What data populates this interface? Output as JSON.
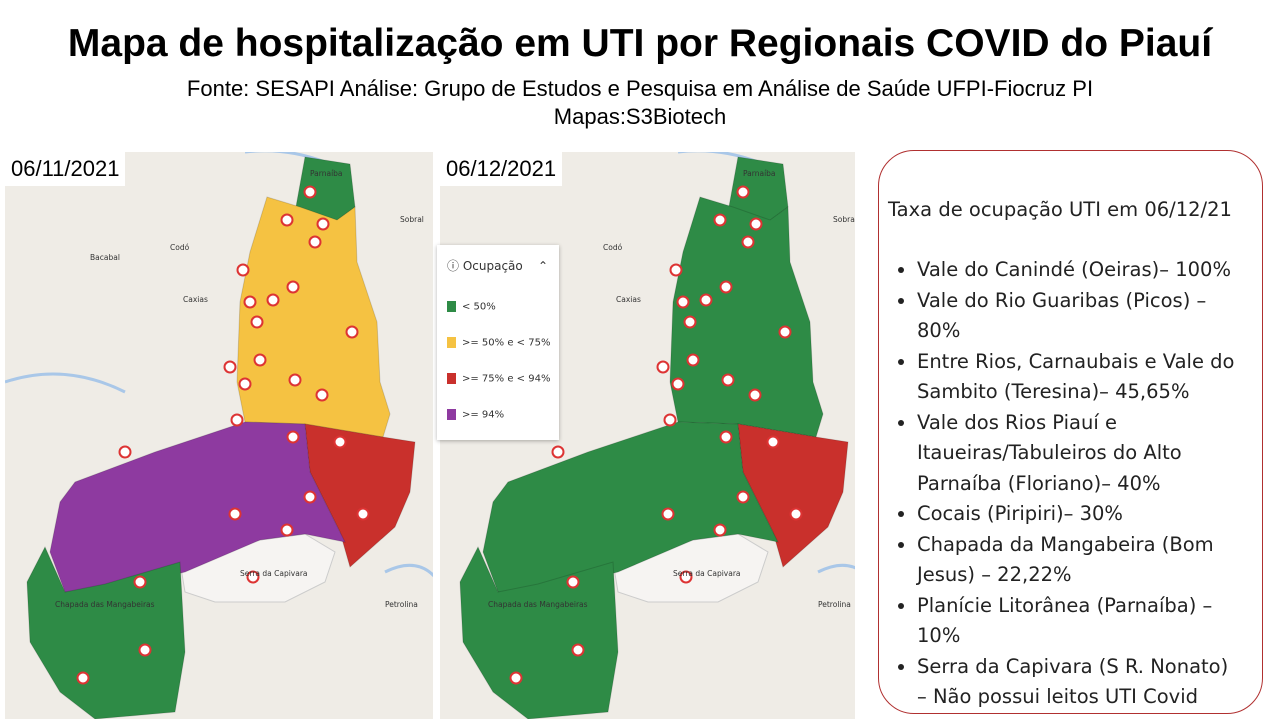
{
  "header": {
    "title": "Mapa de hospitalização em UTI por Regionais COVID do Piauí",
    "subtitle_lines": [
      "Fonte: SESAPI Análise: Grupo de Estudos e Pesquisa em Análise de Saúde UFPI-Fiocruz PI",
      "Mapas:S3Biotech"
    ]
  },
  "maps": [
    {
      "date": "06/11/2021"
    },
    {
      "date": "06/12/2021"
    }
  ],
  "map_labels": [
    "Parnaíba",
    "Sobral",
    "Bacabal",
    "Codó",
    "Caxias",
    "Serra da Capivara",
    "Chapada das Mangabeiras",
    "Petrolina"
  ],
  "legend": {
    "title": "Ocupação",
    "items": [
      "< 50%",
      ">= 50% e < 75%",
      ">= 75% e < 94%",
      ">= 94%"
    ]
  },
  "panel": {
    "title": "Taxa de ocupação UTI em 06/12/21",
    "items": [
      "Vale do Canindé (Oeiras)– 100%",
      "Vale do Rio Guaribas (Picos) – 80%",
      "Entre Rios, Carnaubais e Vale do Sambito (Teresina)– 45,65%",
      "Vale dos Rios Piauí e Itaueiras/Tabuleiros do Alto Parnaíba (Floriano)– 40%",
      "Cocais (Piripiri)– 30%",
      "Chapada da Mangabeira (Bom Jesus) – 22,22%",
      "Planície Litorânea (Parnaíba) – 10%",
      "Serra da Capivara (S R. Nonato) – Não possui leitos UTI Covid"
    ]
  }
}
